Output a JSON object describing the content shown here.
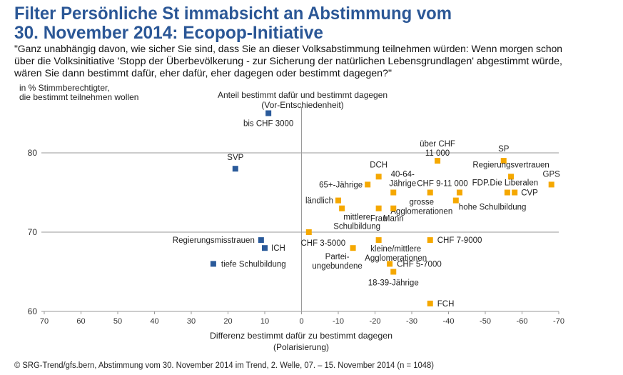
{
  "title_lines": [
    "Filter Persönliche St immabsicht an Abstimmung vom",
    "30. November  2014: Ecopop-Initiative"
  ],
  "question_lines": [
    "\"Ganz unabhängig davon, wie sicher Sie sind, dass Sie an dieser Volksabstimmung teilnehmen würden: Wenn morgen schon",
    "über die Volksinitiative 'Stopp der Überbevölkerung - zur Sicherung der natürlichen Lebensgrundlagen' abgestimmt würde,",
    "wären Sie dann bestimmt dafür, eher dafür, eher dagegen oder bestimmt dagegen?\""
  ],
  "footer": "© SRG-Trend/gfs.bern, Abstimmung vom 30. November 2014 im Trend, 2. Welle, 07. – 15. November 2014 (n = 1048)",
  "chart_data": {
    "type": "scatter",
    "ylabel_lines": [
      "in % Stimmberechtigter,",
      "die bestimmt teilnehmen wollen"
    ],
    "y2label_lines": [
      "Anteil bestimmt dafür und bestimmt dagegen",
      "(Vor-Entschiedenheit)"
    ],
    "xlabel_lines": [
      "Differenz bestimmt dafür zu bestimmt dagegen",
      "(Polarisierung)"
    ],
    "xlim": [
      70,
      -70
    ],
    "ylim": [
      60,
      85
    ],
    "x_ticks": [
      "70",
      "60",
      "50",
      "40",
      "30",
      "20",
      "10",
      "0",
      "-10",
      "-20",
      "-30",
      "-40",
      "-50",
      "-60",
      "-70"
    ],
    "y_ticks": [
      "60",
      "70",
      "80"
    ],
    "gridlines_y": [
      70,
      80
    ],
    "colors": {
      "blue": "#2a5a9a",
      "orange": "#f5a800"
    },
    "points": [
      {
        "label": [
          "bis CHF 3000"
        ],
        "x": 9,
        "y": 85,
        "color": "blue"
      },
      {
        "label": [
          "SVP"
        ],
        "x": 18,
        "y": 78,
        "color": "blue"
      },
      {
        "label": [
          "Regierungsmisstrauen"
        ],
        "x": 11,
        "y": 69,
        "color": "blue"
      },
      {
        "label": [
          "ICH"
        ],
        "x": 10,
        "y": 68,
        "color": "blue"
      },
      {
        "label": [
          "tiefe Schulbildung"
        ],
        "x": 24,
        "y": 66,
        "color": "blue"
      },
      {
        "label": [
          "CHF 3-5000"
        ],
        "x": -2,
        "y": 70,
        "color": "orange"
      },
      {
        "label": [
          "Partei-",
          "ungebundene"
        ],
        "x": -14,
        "y": 68,
        "color": "orange"
      },
      {
        "label": [
          "kleine/mittlere",
          "Agglomerationen"
        ],
        "x": -21,
        "y": 69,
        "color": "orange"
      },
      {
        "label": [
          "CHF 5-7000"
        ],
        "x": -24,
        "y": 66,
        "color": "orange"
      },
      {
        "label": [
          "18-39-Jährige"
        ],
        "x": -25,
        "y": 65,
        "color": "orange"
      },
      {
        "label": [
          "CHF 7-9000"
        ],
        "x": -35,
        "y": 69,
        "color": "orange"
      },
      {
        "label": [
          "FCH"
        ],
        "x": -35,
        "y": 61,
        "color": "orange"
      },
      {
        "label": [
          "über CHF",
          "11 000"
        ],
        "x": -37,
        "y": 79,
        "color": "orange"
      },
      {
        "label": [
          "SP"
        ],
        "x": -55,
        "y": 79,
        "color": "orange"
      },
      {
        "label": [
          "Regierungsvertrauen"
        ],
        "x": -57,
        "y": 77,
        "color": "orange"
      },
      {
        "label": [
          "GPS"
        ],
        "x": -68,
        "y": 76,
        "color": "orange"
      },
      {
        "label": [
          "FDP.Die Liberalen"
        ],
        "x": -56,
        "y": 75,
        "color": "orange"
      },
      {
        "label": [
          "CVP"
        ],
        "x": -58,
        "y": 75,
        "color": "orange"
      },
      {
        "label": [
          "DCH"
        ],
        "x": -21,
        "y": 77,
        "color": "orange"
      },
      {
        "label": [
          "65+-Jährige"
        ],
        "x": -18,
        "y": 76,
        "color": "orange"
      },
      {
        "label": [
          "40-64-",
          "Jährige"
        ],
        "x": -25,
        "y": 75,
        "color": "orange"
      },
      {
        "label": [
          "grosse",
          "Agglomerationen"
        ],
        "x": -35,
        "y": 75,
        "color": "orange"
      },
      {
        "label": [
          "CHF 9-11 000"
        ],
        "x": -43,
        "y": 75,
        "color": "orange"
      },
      {
        "label": [
          "hohe Schulbildung"
        ],
        "x": -42,
        "y": 74,
        "color": "orange"
      },
      {
        "label": [
          "ländlich"
        ],
        "x": -10,
        "y": 74,
        "color": "orange"
      },
      {
        "label": [
          "mittlere",
          "Schulbildung"
        ],
        "x": -11,
        "y": 73,
        "color": "orange"
      },
      {
        "label": [
          "Frau"
        ],
        "x": -21,
        "y": 73,
        "color": "orange"
      },
      {
        "label": [
          "Mann"
        ],
        "x": -25,
        "y": 73,
        "color": "orange"
      }
    ]
  }
}
